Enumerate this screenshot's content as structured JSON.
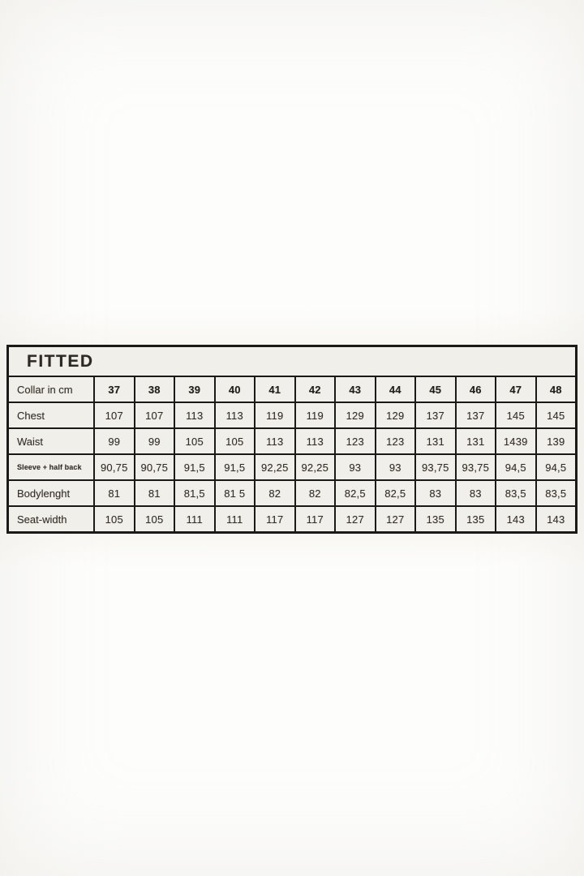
{
  "page": {
    "background_color": "#fdfdfc",
    "scan_tint_color": "#f0ede4",
    "table_cell_color": "#f1efe9",
    "grid_line_color": "#1b1a18",
    "text_color": "#36312c"
  },
  "table": {
    "title": "FITTED",
    "unit_note": "cm",
    "rows": [
      {
        "label": "Collar in cm",
        "bold_values": true,
        "values": [
          "37",
          "38",
          "39",
          "40",
          "41",
          "42",
          "43",
          "44",
          "45",
          "46",
          "47",
          "48"
        ]
      },
      {
        "label": "Chest",
        "values": [
          "107",
          "107",
          "113",
          "113",
          "119",
          "119",
          "129",
          "129",
          "137",
          "137",
          "145",
          "145"
        ]
      },
      {
        "label": "Waist",
        "values": [
          "99",
          "99",
          "105",
          "105",
          "113",
          "113",
          "123",
          "123",
          "131",
          "131",
          "1439",
          "139"
        ]
      },
      {
        "label": "Sleeve + half back",
        "small_label": true,
        "values": [
          "90,75",
          "90,75",
          "91,5",
          "91,5",
          "92,25",
          "92,25",
          "93",
          "93",
          "93,75",
          "93,75",
          "94,5",
          "94,5"
        ]
      },
      {
        "label": "Bodylenght",
        "values": [
          "81",
          "81",
          "81,5",
          "81 5",
          "82",
          "82",
          "82,5",
          "82,5",
          "83",
          "83",
          "83,5",
          "83,5"
        ]
      },
      {
        "label": "Seat-width",
        "values": [
          "105",
          "105",
          "111",
          "111",
          "117",
          "117",
          "127",
          "127",
          "135",
          "135",
          "143",
          "143"
        ]
      }
    ]
  },
  "chart_data": {
    "type": "table",
    "title": "FITTED",
    "columns": [
      "Collar in cm",
      "37",
      "38",
      "39",
      "40",
      "41",
      "42",
      "43",
      "44",
      "45",
      "46",
      "47",
      "48"
    ],
    "rows": [
      [
        "Chest",
        "107",
        "107",
        "113",
        "113",
        "119",
        "119",
        "129",
        "129",
        "137",
        "137",
        "145",
        "145"
      ],
      [
        "Waist",
        "99",
        "99",
        "105",
        "105",
        "113",
        "113",
        "123",
        "123",
        "131",
        "131",
        "1439",
        "139"
      ],
      [
        "Sleeve + half back",
        "90,75",
        "90,75",
        "91,5",
        "91,5",
        "92,25",
        "92,25",
        "93",
        "93",
        "93,75",
        "93,75",
        "94,5",
        "94,5"
      ],
      [
        "Bodylenght",
        "81",
        "81",
        "81,5",
        "81 5",
        "82",
        "82",
        "82,5",
        "82,5",
        "83",
        "83",
        "83,5",
        "83,5"
      ],
      [
        "Seat-width",
        "105",
        "105",
        "111",
        "111",
        "117",
        "117",
        "127",
        "127",
        "135",
        "135",
        "143",
        "143"
      ]
    ]
  }
}
